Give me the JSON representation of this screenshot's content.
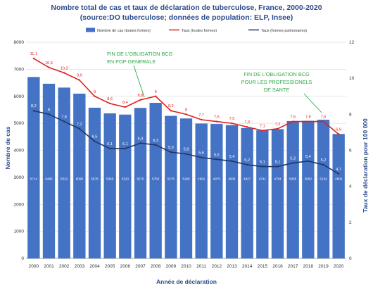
{
  "chart_data": {
    "type": "bar",
    "title": "Nombre total de cas et taux de déclaration de tuberculose, France, 2000-2020",
    "subtitle": "(source:DO tuberculose; données de population: ELP, Insee)",
    "xlabel": "Année de déclaration",
    "ylabel": "Nombre de cas",
    "y2label": "Taux de déclaration pour 100 000",
    "ylim": [
      0,
      8000
    ],
    "y2lim": [
      0,
      12
    ],
    "grid": true,
    "legend_position": "top",
    "categories": [
      "2000",
      "2001",
      "2002",
      "2003",
      "2004",
      "2005",
      "2006",
      "2007",
      "2008",
      "2009",
      "2010",
      "2011",
      "2012",
      "2013",
      "2014",
      "2015",
      "2016",
      "2017",
      "2018",
      "2019",
      "2020"
    ],
    "series": [
      {
        "name": "Nombre de cas (toutes formes)",
        "type": "bar",
        "axis": "left",
        "color": "#4472c4",
        "values": [
          6714,
          6465,
          6322,
          6098,
          5578,
          5369,
          5323,
          5570,
          5758,
          5276,
          5180,
          4991,
          4975,
          4934,
          4827,
          4741,
          4784,
          5085,
          5092,
          5134,
          4606
        ]
      },
      {
        "name": "Taux (toutes formes)",
        "type": "line",
        "axis": "right",
        "color": "#e02020",
        "values": [
          11.1,
          10.6,
          10.3,
          9.9,
          9.0,
          8.6,
          8.4,
          8.8,
          9.0,
          8.2,
          8.0,
          7.7,
          7.6,
          7.5,
          7.3,
          7.1,
          7.2,
          7.6,
          7.6,
          7.6,
          6.9
        ]
      },
      {
        "name": "Taux (formes pulmonaires)",
        "type": "line",
        "axis": "right",
        "color": "#1f3864",
        "values": [
          8.2,
          8.0,
          7.6,
          7.2,
          6.5,
          6.1,
          6.1,
          6.4,
          6.3,
          5.9,
          5.8,
          5.6,
          5.5,
          5.4,
          5.2,
          5.1,
          5.1,
          5.3,
          5.4,
          5.2,
          4.7
        ]
      }
    ],
    "annotations": [
      {
        "lines": [
          "FIN DE L'OBLIGATION BCG",
          "EN POP GENERALE"
        ],
        "year": "2007"
      },
      {
        "lines": [
          "FIN DE L'OBLIGATION BCG",
          "POUR LES PROFESSIONELS",
          "DE SANTE"
        ],
        "year": "2019"
      }
    ],
    "colors": {
      "annotation": "#2ea84a",
      "title": "#2b4c8c",
      "grid": "#d0d0d0"
    }
  }
}
